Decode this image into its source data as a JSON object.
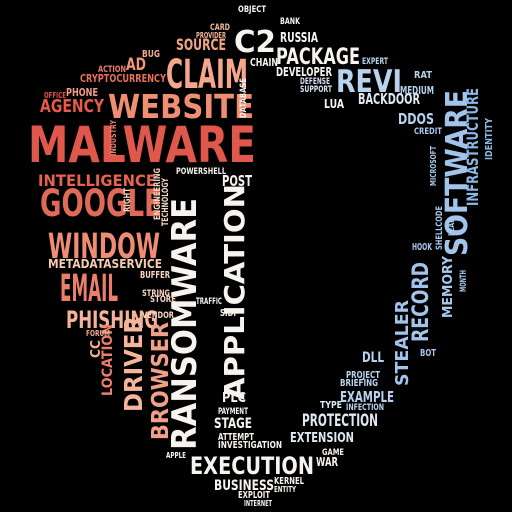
{
  "palette": {
    "background": "#000000",
    "red": "#d9534a",
    "salmon": "#ee8a6e",
    "peach": "#f6c2a6",
    "white": "#f7f3ee",
    "blue": "#a8c8ec",
    "steel": "#7fb2e2"
  },
  "words": [
    {
      "text": "MALWARE",
      "color": "#e0574b"
    },
    {
      "text": "WEBSITE",
      "color": "#ee8e72"
    },
    {
      "text": "CLAIM",
      "color": "#f4a78c"
    },
    {
      "text": "GOOGLE",
      "color": "#e06a58"
    },
    {
      "text": "WINDOW",
      "color": "#ef8d74"
    },
    {
      "text": "EMAIL",
      "color": "#ec7f6b"
    },
    {
      "text": "PHISHING",
      "color": "#f5b49a"
    },
    {
      "text": "AGENCY",
      "color": "#e65a4e"
    },
    {
      "text": "INTELLIGENCE",
      "color": "#e56350"
    },
    {
      "text": "METADATASERVICE",
      "color": "#f6cbb4"
    },
    {
      "text": "SOURCE",
      "color": "#f2a586"
    },
    {
      "text": "AD",
      "color": "#f0957a"
    },
    {
      "text": "CRYPTOCURRENCY",
      "color": "#e9705e"
    },
    {
      "text": "ACTION",
      "color": "#ec7f6a"
    },
    {
      "text": "PHONE",
      "color": "#f0a088"
    },
    {
      "text": "BUG",
      "color": "#f3ad92"
    },
    {
      "text": "OFFICE",
      "color": "#e3574a"
    },
    {
      "text": "CARD",
      "color": "#f4b59b"
    },
    {
      "text": "PROVIDER",
      "color": "#f4b59b"
    },
    {
      "text": "C2",
      "color": "#f7f3ee"
    },
    {
      "text": "OBJECT",
      "color": "#f7f3ee"
    },
    {
      "text": "BANK",
      "color": "#f7f3ee"
    },
    {
      "text": "RUSSIA",
      "color": "#f7f3ee"
    },
    {
      "text": "PACKAGE",
      "color": "#f7f3ee"
    },
    {
      "text": "CHAIN",
      "color": "#f7f3ee"
    },
    {
      "text": "DEVELOPER",
      "color": "#f7f3ee"
    },
    {
      "text": "DEFENSE",
      "color": "#d8e4f2"
    },
    {
      "text": "SUPPORT",
      "color": "#d8e4f2"
    },
    {
      "text": "LUA",
      "color": "#f7f3ee"
    },
    {
      "text": "REVI",
      "color": "#b9d3ef"
    },
    {
      "text": "EXPERT",
      "color": "#b9d3ef"
    },
    {
      "text": "BACKDOOR",
      "color": "#dfe8f3"
    },
    {
      "text": "DDOS",
      "color": "#b9d3ef"
    },
    {
      "text": "MEDIUM",
      "color": "#b9d3ef"
    },
    {
      "text": "RAT",
      "color": "#b9d3ef"
    },
    {
      "text": "CREDIT",
      "color": "#a8c8ec"
    },
    {
      "text": "SOFTWARE",
      "color": "#a2c4ea"
    },
    {
      "text": "INFRASTRUCTURE",
      "color": "#8cb7e4"
    },
    {
      "text": "IDENTITY",
      "color": "#8cb7e4"
    },
    {
      "text": "RANSOMWARE",
      "color": "#f7f3ee"
    },
    {
      "text": "APPLICATION",
      "color": "#f7f3ee"
    },
    {
      "text": "POST",
      "color": "#f7f3ee"
    },
    {
      "text": "POWERSHELL",
      "color": "#f7f3ee"
    },
    {
      "text": "DATABASE",
      "color": "#f7f3ee"
    },
    {
      "text": "BROWSER",
      "color": "#f0a088"
    },
    {
      "text": "DRIVER",
      "color": "#f4b59b"
    },
    {
      "text": "LOCATION",
      "color": "#ec7f6a"
    },
    {
      "text": "CC",
      "color": "#f3ad92"
    },
    {
      "text": "FORUM",
      "color": "#f3ad92"
    },
    {
      "text": "STRING",
      "color": "#f7d4c2"
    },
    {
      "text": "BUFFER",
      "color": "#f7d4c2"
    },
    {
      "text": "VENDOR",
      "color": "#f7d4c2"
    },
    {
      "text": "STORE",
      "color": "#f7d4c2"
    },
    {
      "text": "RIGHT",
      "color": "#f7d4c2"
    },
    {
      "text": "ENGINEERING",
      "color": "#f7d4c2"
    },
    {
      "text": "TECHNOLOGY",
      "color": "#f7d4c2"
    },
    {
      "text": "INDUSTRY",
      "color": "#ec7f6a"
    },
    {
      "text": "TRAFFIC",
      "color": "#f7f3ee"
    },
    {
      "text": "SIDI",
      "color": "#f7f3ee"
    },
    {
      "text": "PLC",
      "color": "#f7f3ee"
    },
    {
      "text": "PAYMENT",
      "color": "#f7f3ee"
    },
    {
      "text": "STAGE",
      "color": "#f7f3ee"
    },
    {
      "text": "ATTEMPT",
      "color": "#f7f3ee"
    },
    {
      "text": "INVESTIGATION",
      "color": "#f7f3ee"
    },
    {
      "text": "APPLE",
      "color": "#f7f3ee"
    },
    {
      "text": "EXECUTION",
      "color": "#f7f3ee"
    },
    {
      "text": "BUSINESS",
      "color": "#f7f3ee"
    },
    {
      "text": "EXPLOIT",
      "color": "#f7f3ee"
    },
    {
      "text": "INTERNET",
      "color": "#f7f3ee"
    },
    {
      "text": "KERNEL",
      "color": "#f7f3ee"
    },
    {
      "text": "ENTITY",
      "color": "#f7f3ee"
    },
    {
      "text": "WAR",
      "color": "#f7f3ee"
    },
    {
      "text": "GAME",
      "color": "#f7f3ee"
    },
    {
      "text": "EXTENSION",
      "color": "#dfe8f3"
    },
    {
      "text": "PROTECTION",
      "color": "#dfe8f3"
    },
    {
      "text": "TYPE",
      "color": "#dfe8f3"
    },
    {
      "text": "INFECTION",
      "color": "#b9d3ef"
    },
    {
      "text": "EXAMPLE",
      "color": "#b9d3ef"
    },
    {
      "text": "BRIEFING",
      "color": "#b9d3ef"
    },
    {
      "text": "PROJECT",
      "color": "#b9d3ef"
    },
    {
      "text": "DLL",
      "color": "#b9d3ef"
    },
    {
      "text": "STEALER",
      "color": "#a2c4ea"
    },
    {
      "text": "RECORD",
      "color": "#a2c4ea"
    },
    {
      "text": "BOT",
      "color": "#a2c4ea"
    },
    {
      "text": "MEMORY",
      "color": "#a8c8ec"
    },
    {
      "text": "SHELLCODE",
      "color": "#a8c8ec"
    },
    {
      "text": "HOOK",
      "color": "#a8c8ec"
    },
    {
      "text": "MICROSOFT",
      "color": "#a8c8ec"
    },
    {
      "text": "LEAK",
      "color": "#a8c8ec"
    },
    {
      "text": "MONTH",
      "color": "#a8c8ec"
    }
  ]
}
